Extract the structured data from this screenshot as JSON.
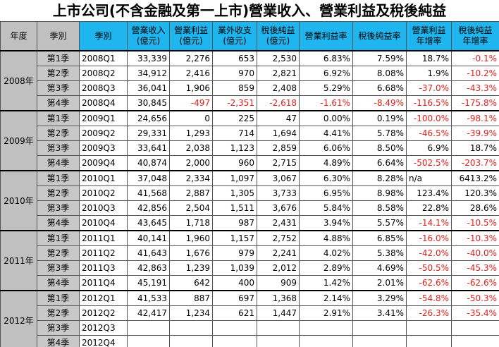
{
  "title": "上市公司(不含金融及第一上市)營業收入、營業利益及稅後純益",
  "table": {
    "header": [
      [
        "年度"
      ],
      [
        "季別"
      ],
      [
        "季別"
      ],
      [
        "營業收入",
        "(億元)"
      ],
      [
        "營業利益",
        "(億元)"
      ],
      [
        "業外收支",
        "(億元)"
      ],
      [
        "稅後純益",
        "(億元)"
      ],
      [
        "營業利益率"
      ],
      [
        "稅後純益率"
      ],
      [
        "營業利益",
        "年增率"
      ],
      [
        "稅後純益",
        "年增率"
      ]
    ],
    "years": [
      {
        "label": "2008年",
        "quarters": [
          {
            "quarter": "第1季",
            "period": "2008Q1",
            "values": [
              "33,339",
              "2,276",
              "653",
              "2,530",
              "6.83%",
              "7.59%",
              "18.7%",
              "-0.1%"
            ]
          },
          {
            "quarter": "第2季",
            "period": "2008Q2",
            "values": [
              "34,912",
              "2,416",
              "970",
              "2,821",
              "6.92%",
              "8.08%",
              "1.9%",
              "-10.2%"
            ]
          },
          {
            "quarter": "第3季",
            "period": "2008Q3",
            "values": [
              "36,041",
              "1,906",
              "859",
              "2,408",
              "5.29%",
              "6.68%",
              "-37.0%",
              "-43.3%"
            ]
          },
          {
            "quarter": "第4季",
            "period": "2008Q4",
            "values": [
              "30,845",
              "-497",
              "-2,351",
              "-2,618",
              "-1.61%",
              "-8.49%",
              "-116.5%",
              "-175.8%"
            ]
          }
        ]
      },
      {
        "label": "2009年",
        "quarters": [
          {
            "quarter": "第1季",
            "period": "2009Q1",
            "values": [
              "24,656",
              "0",
              "225",
              "47",
              "0.00%",
              "0.19%",
              "-100.0%",
              "-98.1%"
            ]
          },
          {
            "quarter": "第2季",
            "period": "2009Q2",
            "values": [
              "29,331",
              "1,293",
              "714",
              "1,694",
              "4.41%",
              "5.78%",
              "-46.5%",
              "-39.9%"
            ]
          },
          {
            "quarter": "第3季",
            "period": "2009Q3",
            "values": [
              "33,641",
              "2,038",
              "1,123",
              "2,859",
              "6.06%",
              "8.50%",
              "6.9%",
              "18.7%"
            ]
          },
          {
            "quarter": "第4季",
            "period": "2009Q4",
            "values": [
              "40,874",
              "2,000",
              "960",
              "2,715",
              "4.89%",
              "6.64%",
              "-502.5%",
              "-203.7%"
            ]
          }
        ]
      },
      {
        "label": "2010年",
        "quarters": [
          {
            "quarter": "第1季",
            "period": "2010Q1",
            "values": [
              "37,048",
              "2,334",
              "1,097",
              "3,067",
              "6.30%",
              "8.28%",
              "n/a",
              "6413.2%"
            ]
          },
          {
            "quarter": "第2季",
            "period": "2010Q2",
            "values": [
              "41,568",
              "2,887",
              "1,305",
              "3,733",
              "6.95%",
              "8.98%",
              "123.4%",
              "120.3%"
            ]
          },
          {
            "quarter": "第3季",
            "period": "2010Q3",
            "values": [
              "42,856",
              "2,504",
              "1,511",
              "3,676",
              "5.84%",
              "8.58%",
              "22.8%",
              "28.6%"
            ]
          },
          {
            "quarter": "第4季",
            "period": "2010Q4",
            "values": [
              "43,645",
              "1,718",
              "987",
              "2,431",
              "3.94%",
              "5.57%",
              "-14.1%",
              "-10.5%"
            ]
          }
        ]
      },
      {
        "label": "2011年",
        "quarters": [
          {
            "quarter": "第1季",
            "period": "2011Q1",
            "values": [
              "40,141",
              "1,960",
              "1,157",
              "2,752",
              "4.88%",
              "6.85%",
              "-16.0%",
              "-10.3%"
            ]
          },
          {
            "quarter": "第2季",
            "period": "2011Q2",
            "values": [
              "41,643",
              "1,676",
              "979",
              "2,241",
              "4.02%",
              "5.38%",
              "-42.0%",
              "-40.0%"
            ]
          },
          {
            "quarter": "第3季",
            "period": "2011Q3",
            "values": [
              "42,863",
              "1,239",
              "1,039",
              "2,012",
              "2.89%",
              "4.69%",
              "-50.5%",
              "-45.3%"
            ]
          },
          {
            "quarter": "第4季",
            "period": "2011Q4",
            "values": [
              "45,191",
              "642",
              "400",
              "909",
              "1.42%",
              "2.01%",
              "-62.6%",
              "-62.6%"
            ]
          }
        ]
      },
      {
        "label": "2012年",
        "quarters": [
          {
            "quarter": "第1季",
            "period": "2012Q1",
            "values": [
              "41,533",
              "887",
              "697",
              "1,368",
              "2.14%",
              "3.29%",
              "-54.8%",
              "-50.3%"
            ]
          },
          {
            "quarter": "第2季",
            "period": "2012Q2",
            "values": [
              "42,417",
              "1,234",
              "621",
              "1,447",
              "2.91%",
              "3.41%",
              "-26.3%",
              "-35.4%"
            ]
          },
          {
            "quarter": "第3季",
            "period": "2012Q3",
            "values": []
          },
          {
            "quarter": "第4季",
            "period": "2012Q4",
            "values": []
          }
        ]
      }
    ]
  }
}
